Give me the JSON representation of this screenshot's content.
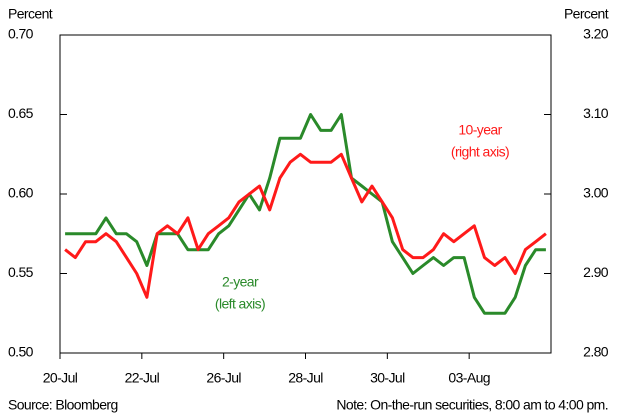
{
  "chart_data": {
    "type": "line",
    "y_axis_title": "Percent",
    "y2_axis_title": "Percent",
    "categories": [
      "20-Jul",
      null,
      null,
      null,
      null,
      null,
      null,
      null,
      "22-Jul",
      null,
      null,
      null,
      null,
      null,
      null,
      null,
      "26-Jul",
      null,
      null,
      null,
      null,
      null,
      null,
      null,
      "28-Jul",
      null,
      null,
      null,
      null,
      null,
      null,
      null,
      "30-Jul",
      null,
      null,
      null,
      null,
      null,
      null,
      null,
      "03-Aug",
      null,
      null,
      null,
      null,
      null,
      null,
      null
    ],
    "series": [
      {
        "name": "2-year",
        "axis_note": "(left axis)",
        "color": "#2a8a2a",
        "axis": "y",
        "values": [
          0.575,
          0.575,
          0.575,
          0.575,
          0.585,
          0.575,
          0.575,
          0.57,
          0.555,
          0.575,
          0.575,
          0.575,
          0.565,
          0.565,
          0.565,
          0.575,
          0.58,
          0.59,
          0.6,
          0.59,
          0.61,
          0.635,
          0.635,
          0.635,
          0.65,
          0.64,
          0.64,
          0.65,
          0.61,
          0.605,
          0.6,
          0.595,
          0.57,
          0.56,
          0.55,
          0.555,
          0.56,
          0.555,
          0.56,
          0.56,
          0.535,
          0.525,
          0.525,
          0.525,
          0.535,
          0.555,
          0.565,
          0.565
        ]
      },
      {
        "name": "10-year",
        "axis_note": "(right axis)",
        "color": "#ff1a1a",
        "axis": "y2",
        "values": [
          2.93,
          2.92,
          2.94,
          2.94,
          2.95,
          2.94,
          2.92,
          2.9,
          2.87,
          2.95,
          2.96,
          2.95,
          2.97,
          2.93,
          2.95,
          2.96,
          2.97,
          2.99,
          3.0,
          3.01,
          2.98,
          3.02,
          3.04,
          3.05,
          3.04,
          3.04,
          3.04,
          3.05,
          3.02,
          2.99,
          3.01,
          2.99,
          2.97,
          2.93,
          2.92,
          2.92,
          2.93,
          2.95,
          2.94,
          2.95,
          2.96,
          2.92,
          2.91,
          2.92,
          2.9,
          2.93,
          2.94,
          2.95
        ]
      }
    ],
    "ylim": [
      0.5,
      0.7
    ],
    "yticks": [
      {
        "value": 0.5,
        "label": "0.50"
      },
      0.55,
      {
        "value": 0.6,
        "label": "0.60"
      },
      0.65,
      {
        "value": 0.7,
        "label": "0.70"
      }
    ],
    "y2lim": [
      2.8,
      3.2
    ],
    "y2ticks": [
      {
        "value": 2.8,
        "label": "2.80"
      },
      {
        "value": 2.9,
        "label": "2.90"
      },
      {
        "value": 3.0,
        "label": "3.00"
      },
      {
        "value": 3.1,
        "label": "3.10"
      },
      {
        "value": 3.2,
        "label": "3.20"
      }
    ],
    "source": "Source: Bloomberg",
    "note": "Note: On-the-run securities, 8:00 am to 4:00 pm."
  }
}
